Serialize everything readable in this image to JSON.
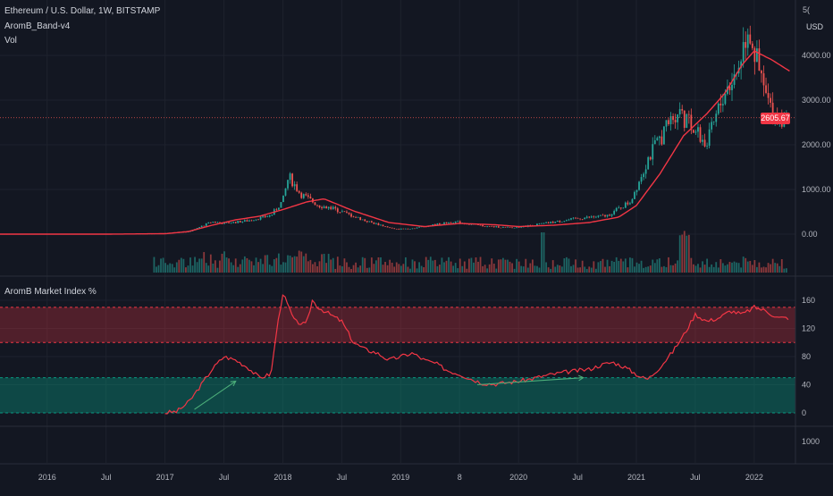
{
  "header": {
    "symbol_line": "Ethereum / U.S. Dollar, 1W, BITSTAMP",
    "indicator_1": "AromB_Band-v4",
    "indicator_2": "Vol",
    "pane2_title": "AromB Market Index %"
  },
  "price_axis": {
    "currency": "USD",
    "ticks": [
      "4000.00",
      "3000.00",
      "2000.00",
      "1000.00",
      "0.00"
    ],
    "top_clip": "5(",
    "last_price": "2605.67"
  },
  "index_axis": {
    "ticks": [
      "160",
      "120",
      "80",
      "40",
      "0"
    ]
  },
  "pane3_axis": {
    "ticks": [
      "1000"
    ]
  },
  "time_axis": {
    "labels": [
      "2016",
      "Jul",
      "2017",
      "Jul",
      "2018",
      "Jul",
      "2019",
      "8",
      "2020",
      "Jul",
      "2021",
      "Jul",
      "2022"
    ]
  },
  "colors": {
    "background": "#131722",
    "up": "#26a69a",
    "down": "#ef5350",
    "band_line": "#f23645",
    "upper_zone": "#f23645",
    "lower_zone": "#089981",
    "arrow": "#4caf7a"
  },
  "chart_data": [
    {
      "type": "line",
      "title": "Ethereum / U.S. Dollar, 1W, BITSTAMP",
      "ylabel": "USD",
      "ylim": [
        -900,
        5000
      ],
      "xlim": [
        2015.6,
        2022.35
      ],
      "series": [
        {
          "name": "AromB_Band-v4",
          "x": [
            2015.6,
            2016.5,
            2017.0,
            2017.2,
            2017.4,
            2017.6,
            2017.8,
            2018.0,
            2018.2,
            2018.35,
            2018.6,
            2018.9,
            2019.2,
            2019.5,
            2019.8,
            2020.0,
            2020.3,
            2020.6,
            2020.85,
            2021.0,
            2021.2,
            2021.4,
            2021.6,
            2021.75,
            2021.9,
            2022.0,
            2022.15,
            2022.3
          ],
          "y": [
            0,
            0,
            10,
            60,
            200,
            320,
            400,
            550,
            720,
            790,
            520,
            260,
            170,
            240,
            210,
            170,
            200,
            260,
            380,
            640,
            1350,
            2200,
            2700,
            3150,
            3800,
            4100,
            3900,
            3650
          ]
        }
      ],
      "price_path": {
        "x": [
          2015.6,
          2016.9,
          2017.2,
          2017.4,
          2017.5,
          2017.7,
          2017.9,
          2018.0,
          2018.05,
          2018.15,
          2018.3,
          2018.45,
          2018.7,
          2018.95,
          2019.1,
          2019.45,
          2019.7,
          2019.95,
          2020.2,
          2020.5,
          2020.75,
          2020.95,
          2021.1,
          2021.35,
          2021.5,
          2021.6,
          2021.75,
          2021.85,
          2021.95,
          2022.05,
          2022.15,
          2022.28
        ],
        "y": [
          1,
          8,
          50,
          280,
          240,
          300,
          420,
          750,
          1300,
          900,
          650,
          550,
          300,
          110,
          130,
          280,
          180,
          140,
          230,
          350,
          410,
          730,
          1700,
          2800,
          2300,
          2000,
          3200,
          3600,
          4700,
          3500,
          2700,
          2605
        ]
      },
      "last_price": 2605.67
    },
    {
      "type": "line",
      "title": "AromB Market Index %",
      "ylim": [
        -15,
        175
      ],
      "zones": [
        {
          "name": "upper",
          "from": 100,
          "to": 150
        },
        {
          "name": "lower",
          "from": 0,
          "to": 50
        }
      ],
      "series": [
        {
          "name": "AromB Market Index %",
          "x": [
            2017.0,
            2017.1,
            2017.2,
            2017.3,
            2017.4,
            2017.5,
            2017.6,
            2017.7,
            2017.8,
            2017.9,
            2017.95,
            2018.0,
            2018.05,
            2018.1,
            2018.2,
            2018.25,
            2018.3,
            2018.4,
            2018.5,
            2018.6,
            2018.7,
            2018.8,
            2018.9,
            2019.0,
            2019.1,
            2019.2,
            2019.3,
            2019.4,
            2019.5,
            2019.6,
            2019.7,
            2019.8,
            2019.9,
            2020.0,
            2020.1,
            2020.2,
            2020.3,
            2020.4,
            2020.5,
            2020.6,
            2020.7,
            2020.8,
            2020.9,
            2021.0,
            2021.05,
            2021.1,
            2021.2,
            2021.3,
            2021.4,
            2021.5,
            2021.6,
            2021.7,
            2021.8,
            2021.9,
            2022.0,
            2022.1,
            2022.2,
            2022.3
          ],
          "y": [
            0,
            2,
            15,
            38,
            62,
            80,
            75,
            65,
            50,
            55,
            120,
            170,
            150,
            130,
            125,
            160,
            150,
            140,
            130,
            100,
            90,
            85,
            75,
            80,
            85,
            75,
            70,
            60,
            55,
            48,
            42,
            41,
            43,
            45,
            48,
            52,
            55,
            58,
            60,
            62,
            68,
            72,
            65,
            55,
            50,
            48,
            65,
            85,
            110,
            140,
            130,
            135,
            145,
            140,
            150,
            145,
            135,
            135
          ]
        }
      ],
      "annotations": [
        {
          "type": "arrow",
          "x": [
            2017.25,
            2017.6
          ],
          "y": [
            5,
            45
          ]
        },
        {
          "type": "arrow",
          "x": [
            2019.65,
            2020.55
          ],
          "y": [
            40,
            50
          ]
        }
      ]
    }
  ]
}
